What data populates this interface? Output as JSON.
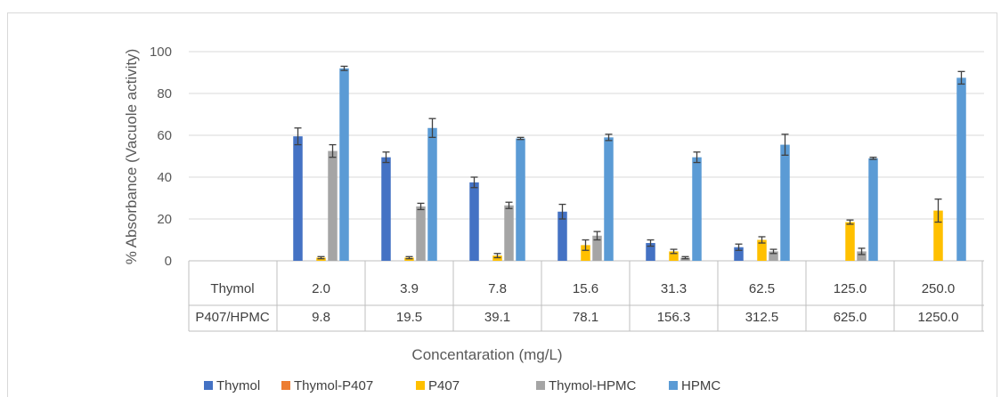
{
  "chart_data": {
    "type": "bar",
    "ylabel": "% Absorbance (Vacuole activity)",
    "xlabel": "Concentaration (mg/L)",
    "ylim": [
      0,
      100
    ],
    "yticks": [
      "0",
      "20",
      "40",
      "60",
      "80",
      "100"
    ],
    "grid": true,
    "legend_position": "bottom-left",
    "row_labels": [
      "Thymol",
      "P407/HPMC"
    ],
    "thymol_conc": [
      "2.0",
      "3.9",
      "7.8",
      "15.6",
      "31.3",
      "62.5",
      "125.0",
      "250.0"
    ],
    "p407_hpmc_conc": [
      "9.8",
      "19.5",
      "39.1",
      "78.1",
      "156.3",
      "312.5",
      "625.0",
      "1250.0"
    ],
    "series": [
      {
        "name": "Thymol",
        "color": "#4472c4",
        "values": [
          59.5,
          49.5,
          37.5,
          23.5,
          8.5,
          6.5,
          0,
          0
        ],
        "errors": [
          4.0,
          2.5,
          2.5,
          3.5,
          1.5,
          1.5,
          0,
          0
        ]
      },
      {
        "name": "Thymol-P407",
        "color": "#ed7d31",
        "values": [
          0,
          0,
          0,
          0,
          0,
          0,
          0,
          0
        ],
        "errors": [
          0,
          0,
          0,
          0,
          0,
          0,
          0,
          0
        ]
      },
      {
        "name": "P407",
        "color": "#ffc000",
        "values": [
          1.5,
          1.5,
          2.5,
          7.5,
          4.5,
          10.0,
          18.5,
          24.0
        ],
        "errors": [
          0.5,
          0.5,
          1.0,
          2.5,
          1.0,
          1.5,
          1.0,
          5.5
        ]
      },
      {
        "name": "Thymol-HPMC",
        "color": "#a5a5a5",
        "values": [
          52.5,
          26.0,
          26.5,
          12.0,
          1.5,
          4.5,
          4.5,
          0
        ],
        "errors": [
          3.0,
          1.5,
          1.5,
          2.0,
          0.5,
          1.0,
          1.5,
          0
        ]
      },
      {
        "name": "HPMC",
        "color": "#5b9bd5",
        "values": [
          92.0,
          63.5,
          58.5,
          59.0,
          49.5,
          55.5,
          49.0,
          87.5
        ],
        "errors": [
          1.0,
          4.5,
          0.5,
          1.5,
          2.5,
          5.0,
          0.5,
          3.0
        ]
      }
    ]
  }
}
